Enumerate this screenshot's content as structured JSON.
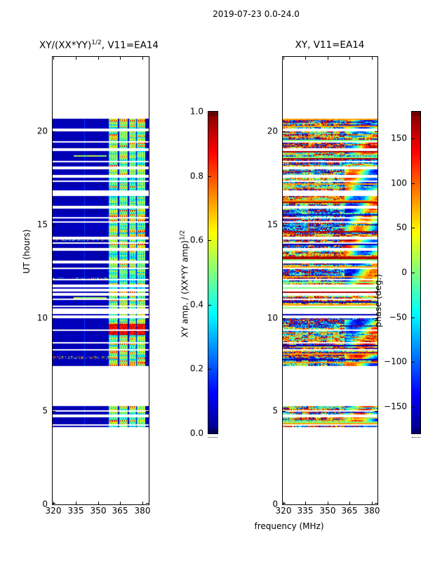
{
  "figure": {
    "title": "2019-07-23 0.0-24.0",
    "background": "#ffffff",
    "axis_color": "#000000"
  },
  "chart_data": [
    {
      "type": "heatmap",
      "panel": "left",
      "title": {
        "pre": "XY/(XX*YY)",
        "sup": "1/2",
        "post": ", V11=EA14"
      },
      "xlabel": "frequency (MHz)",
      "ylabel": "UT (hours)",
      "xlim": [
        320,
        384.7
      ],
      "ylim": [
        0,
        24
      ],
      "xticks": [
        320,
        335,
        350,
        365,
        380
      ],
      "yticks": [
        0,
        5,
        10,
        15,
        20
      ],
      "colormap": "jet",
      "colorbar": {
        "label": {
          "pre": "XY amp. / (XX*YY amp)",
          "sup": "1/2",
          "post": ""
        },
        "ticks": [
          "1.0",
          "0.8",
          "0.6",
          "0.4",
          "0.2",
          "0.0"
        ],
        "tick_values": [
          1.0,
          0.8,
          0.6,
          0.4,
          0.2,
          0.0
        ],
        "range": [
          0,
          1
        ]
      },
      "content": {
        "no_data_color": "white",
        "time_bands_hours": [
          [
            7.45,
            20.7
          ],
          [
            4.18,
            5.27
          ]
        ],
        "quiet_band_amp": [
          0.02,
          0.12
        ],
        "rfi_stripe_mhz": [
          [
            357.5,
            363.2
          ],
          [
            364.2,
            369.8
          ],
          [
            370.8,
            375.4
          ],
          [
            376.4,
            381.3
          ]
        ],
        "rfi_amp_range": [
          0.2,
          0.7
        ],
        "strong_event": {
          "hours": [
            9.15,
            9.72
          ],
          "mhz": [
            357.5,
            381.3
          ],
          "amp": [
            0.8,
            0.97
          ]
        },
        "narrow_line_mhz": 341,
        "speckle_row_hours": [
          17.55,
          14.2,
          12.05,
          7.85
        ],
        "segment_row_hours": [
          18.66,
          11.06
        ]
      }
    },
    {
      "type": "heatmap",
      "panel": "right",
      "title": {
        "pre": "XY, V11=EA14",
        "sup": "",
        "post": ""
      },
      "xlabel": "frequency (MHz)",
      "ylabel": "",
      "xlim": [
        320,
        384.4
      ],
      "ylim": [
        0,
        24
      ],
      "xticks": [
        320,
        335,
        350,
        365,
        380
      ],
      "yticks": [
        0,
        5,
        10,
        15,
        20
      ],
      "colormap": "jet",
      "colorbar": {
        "label": {
          "pre": "phase (deg.)",
          "sup": "",
          "post": ""
        },
        "ticks": [
          "150",
          "100",
          "50",
          "0",
          "−50",
          "−100",
          "−150"
        ],
        "tick_values": [
          150,
          100,
          50,
          0,
          -50,
          -100,
          -150
        ],
        "range": [
          -180,
          180
        ]
      },
      "content": {
        "no_data_color": "white",
        "time_bands_hours": [
          [
            7.45,
            20.7
          ],
          [
            4.18,
            5.27
          ]
        ],
        "phase_range_deg": [
          -180,
          180
        ],
        "smooth_blob_mhz_min": 361,
        "narrow_line_mhz": 336.5
      }
    }
  ]
}
